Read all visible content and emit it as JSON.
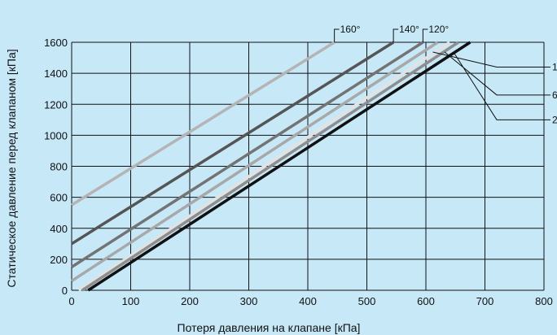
{
  "chart_data": {
    "type": "line",
    "title": "",
    "xlabel": "Потеря давления на клапане [кПа]",
    "ylabel": "Статическое давление перед клапаном [кПа]",
    "xlim": [
      0,
      800
    ],
    "ylim": [
      0,
      1600
    ],
    "xticks": [
      "0",
      "100",
      "200",
      "300",
      "400",
      "500",
      "600",
      "700",
      "800"
    ],
    "yticks": [
      "0",
      "200",
      "400",
      "600",
      "800",
      "1000",
      "1200",
      "1400",
      "1600"
    ],
    "grid": true,
    "temperature_labels": [
      "160°",
      "140°",
      "120°"
    ],
    "right_labels": [
      "1",
      "6",
      "2"
    ],
    "series": [
      {
        "color": "#b4b4b4",
        "x": [
          0,
          445
        ],
        "y": [
          550,
          1600
        ]
      },
      {
        "color": "#555555",
        "x": [
          0,
          545
        ],
        "y": [
          300,
          1600
        ]
      },
      {
        "color": "#737373",
        "x": [
          0,
          595
        ],
        "y": [
          150,
          1600
        ]
      },
      {
        "color": "#a8a8a8",
        "x": [
          0,
          620
        ],
        "y": [
          60,
          1600
        ]
      },
      {
        "color": "#e2e2e2",
        "x": [
          12,
          640
        ],
        "y": [
          0,
          1600
        ]
      },
      {
        "color": "#8e8e8e",
        "x": [
          18,
          655
        ],
        "y": [
          0,
          1600
        ]
      },
      {
        "color": "#111111",
        "x": [
          28,
          675
        ],
        "y": [
          0,
          1600
        ]
      }
    ]
  }
}
